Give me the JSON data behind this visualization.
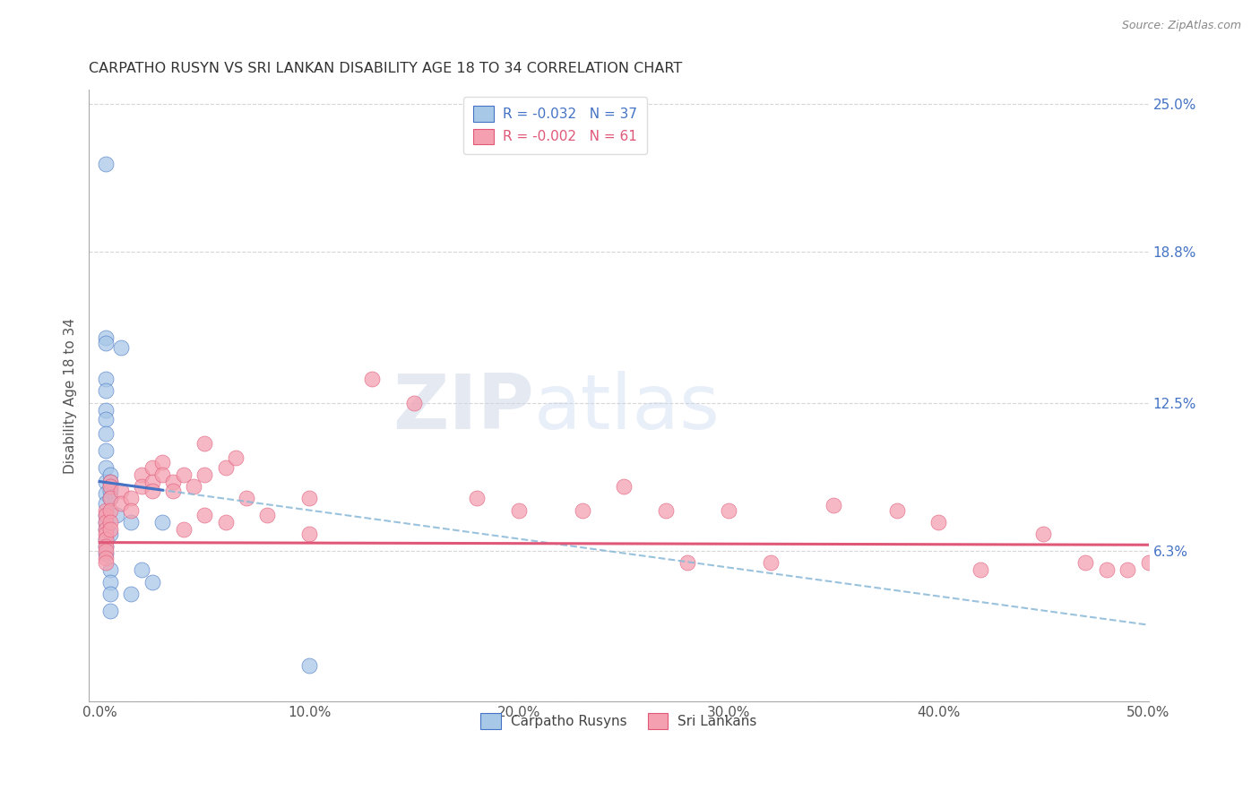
{
  "title": "CARPATHO RUSYN VS SRI LANKAN DISABILITY AGE 18 TO 34 CORRELATION CHART",
  "source": "Source: ZipAtlas.com",
  "xlabel_tick_vals": [
    0.0,
    10.0,
    20.0,
    30.0,
    40.0,
    50.0
  ],
  "ylabel_tick_vals": [
    0.0,
    6.3,
    12.5,
    18.8,
    25.0
  ],
  "ylabel_right_tick_vals": [
    6.3,
    12.5,
    18.8,
    25.0
  ],
  "xlim": [
    -0.5,
    50.0
  ],
  "ylim": [
    0.0,
    25.6
  ],
  "ylabel": "Disability Age 18 to 34",
  "legend_label1": "Carpatho Rusyns",
  "legend_label2": "Sri Lankans",
  "R1": -0.032,
  "N1": 37,
  "R2": -0.002,
  "N2": 61,
  "color_blue": "#a8c8e8",
  "color_pink": "#f4a0b0",
  "line_blue": "#4472c4",
  "line_pink": "#e05878",
  "line_dashed_blue": "#88b8d8",
  "background": "#ffffff",
  "grid_color": "#cccccc",
  "watermark_zip": "ZIP",
  "watermark_atlas": "atlas",
  "blue_x": [
    0.3,
    0.3,
    0.3,
    0.3,
    0.3,
    0.3,
    0.3,
    0.3,
    0.3,
    0.3,
    0.3,
    0.3,
    0.3,
    0.3,
    0.3,
    0.3,
    0.3,
    0.3,
    0.3,
    0.5,
    0.5,
    0.5,
    0.5,
    0.5,
    0.5,
    0.5,
    0.5,
    0.5,
    0.5,
    0.8,
    1.0,
    1.5,
    1.5,
    2.0,
    2.5,
    3.0,
    10.0
  ],
  "blue_y": [
    22.5,
    15.2,
    15.0,
    13.5,
    13.0,
    12.2,
    11.8,
    11.2,
    10.5,
    9.8,
    9.2,
    8.7,
    8.3,
    7.8,
    7.5,
    7.2,
    6.8,
    6.5,
    6.2,
    9.5,
    9.2,
    9.0,
    8.8,
    8.5,
    7.0,
    5.5,
    5.0,
    4.5,
    3.8,
    7.8,
    14.8,
    7.5,
    4.5,
    5.5,
    5.0,
    7.5,
    1.5
  ],
  "pink_x": [
    0.3,
    0.3,
    0.3,
    0.3,
    0.3,
    0.3,
    0.3,
    0.3,
    0.3,
    0.3,
    0.5,
    0.5,
    0.5,
    0.5,
    0.5,
    0.5,
    1.0,
    1.0,
    1.5,
    1.5,
    2.0,
    2.0,
    2.5,
    2.5,
    2.5,
    3.0,
    3.0,
    3.5,
    3.5,
    4.0,
    4.0,
    4.5,
    5.0,
    5.0,
    5.0,
    6.0,
    6.0,
    6.5,
    7.0,
    8.0,
    10.0,
    10.0,
    13.0,
    15.0,
    18.0,
    20.0,
    23.0,
    25.0,
    27.0,
    28.0,
    30.0,
    32.0,
    35.0,
    38.0,
    40.0,
    42.0,
    45.0,
    47.0,
    48.0,
    49.0,
    50.0
  ],
  "pink_y": [
    8.0,
    7.8,
    7.5,
    7.2,
    7.0,
    6.8,
    6.5,
    6.3,
    6.0,
    5.8,
    9.2,
    9.0,
    8.5,
    8.0,
    7.5,
    7.2,
    8.8,
    8.3,
    8.5,
    8.0,
    9.5,
    9.0,
    9.8,
    9.2,
    8.8,
    10.0,
    9.5,
    9.2,
    8.8,
    9.5,
    7.2,
    9.0,
    10.8,
    9.5,
    7.8,
    9.8,
    7.5,
    10.2,
    8.5,
    7.8,
    8.5,
    7.0,
    13.5,
    12.5,
    8.5,
    8.0,
    8.0,
    9.0,
    8.0,
    5.8,
    8.0,
    5.8,
    8.2,
    8.0,
    7.5,
    5.5,
    7.0,
    5.8,
    5.5,
    5.5,
    5.8
  ],
  "blue_reg_x0": 0.0,
  "blue_reg_y0": 9.2,
  "blue_reg_x1": 50.0,
  "blue_reg_y1": 3.2,
  "pink_reg_x0": 0.0,
  "pink_reg_y0": 6.65,
  "pink_reg_x1": 50.0,
  "pink_reg_y1": 6.55
}
